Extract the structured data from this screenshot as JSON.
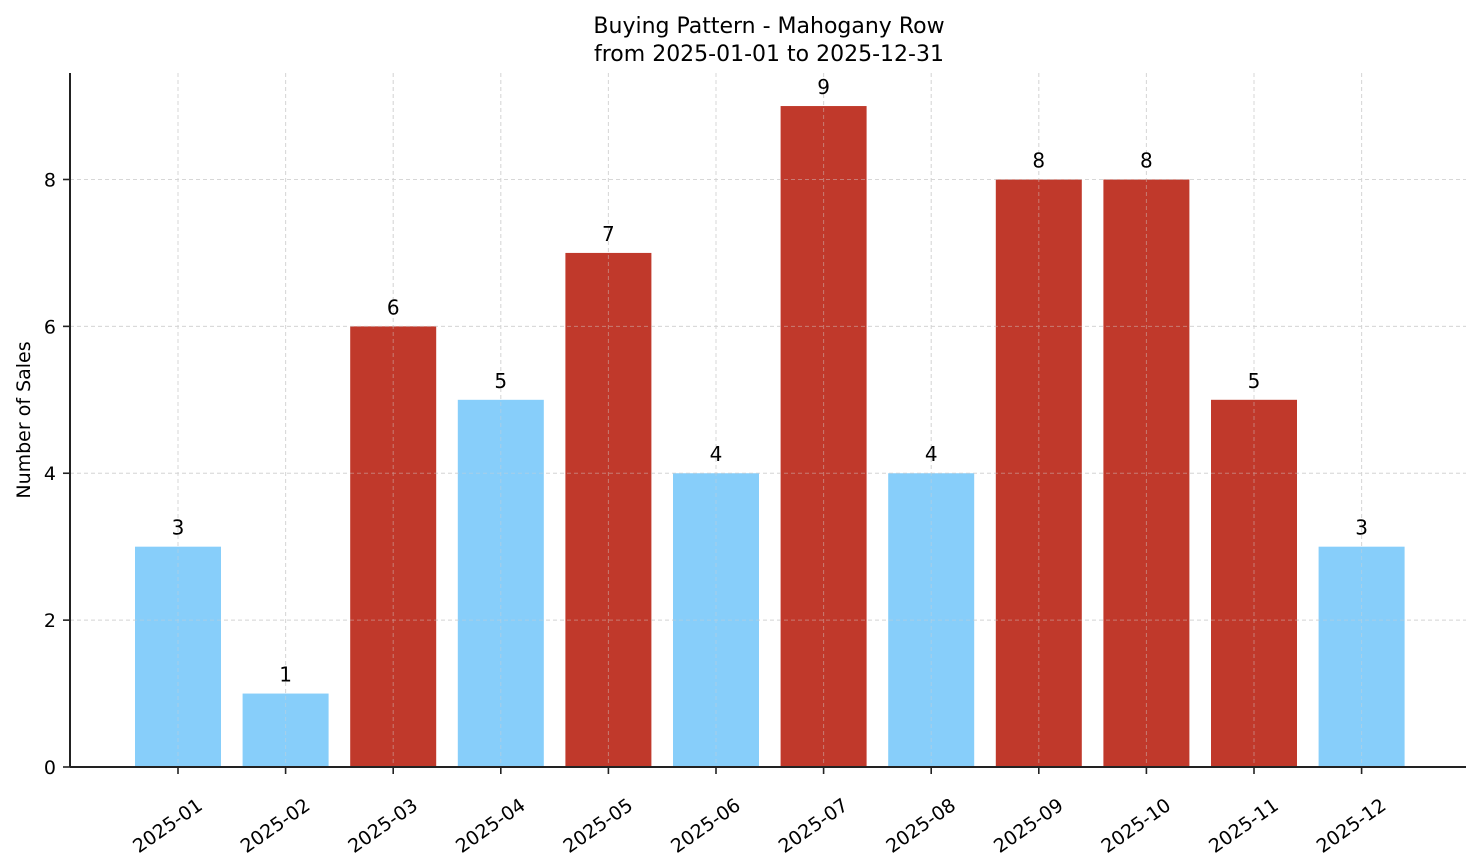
{
  "chart_data": {
    "type": "bar",
    "title": "Buying Pattern - Mahogany Row",
    "subtitle": "from 2025-01-01 to 2025-12-31",
    "xlabel": "",
    "ylabel": "Number of Sales",
    "categories": [
      "2025-01",
      "2025-02",
      "2025-03",
      "2025-04",
      "2025-05",
      "2025-06",
      "2025-07",
      "2025-08",
      "2025-09",
      "2025-10",
      "2025-11",
      "2025-12"
    ],
    "values": [
      3,
      1,
      6,
      5,
      7,
      4,
      9,
      4,
      8,
      8,
      5,
      3
    ],
    "bar_colors": [
      "#87cefa",
      "#87cefa",
      "#c0392b",
      "#87cefa",
      "#c0392b",
      "#87cefa",
      "#c0392b",
      "#87cefa",
      "#c0392b",
      "#c0392b",
      "#c0392b",
      "#87cefa"
    ],
    "data_labels": [
      "3",
      "1",
      "6",
      "5",
      "7",
      "4",
      "9",
      "4",
      "8",
      "8",
      "5",
      "3"
    ],
    "yticks": [
      0,
      2,
      4,
      6,
      8
    ],
    "ylim": [
      0,
      9.45
    ],
    "grid": true,
    "legend": null,
    "colors": {
      "high": "#c0392b",
      "low": "#87cefa",
      "grid": "#d3d3d3",
      "axis": "#222222"
    }
  }
}
